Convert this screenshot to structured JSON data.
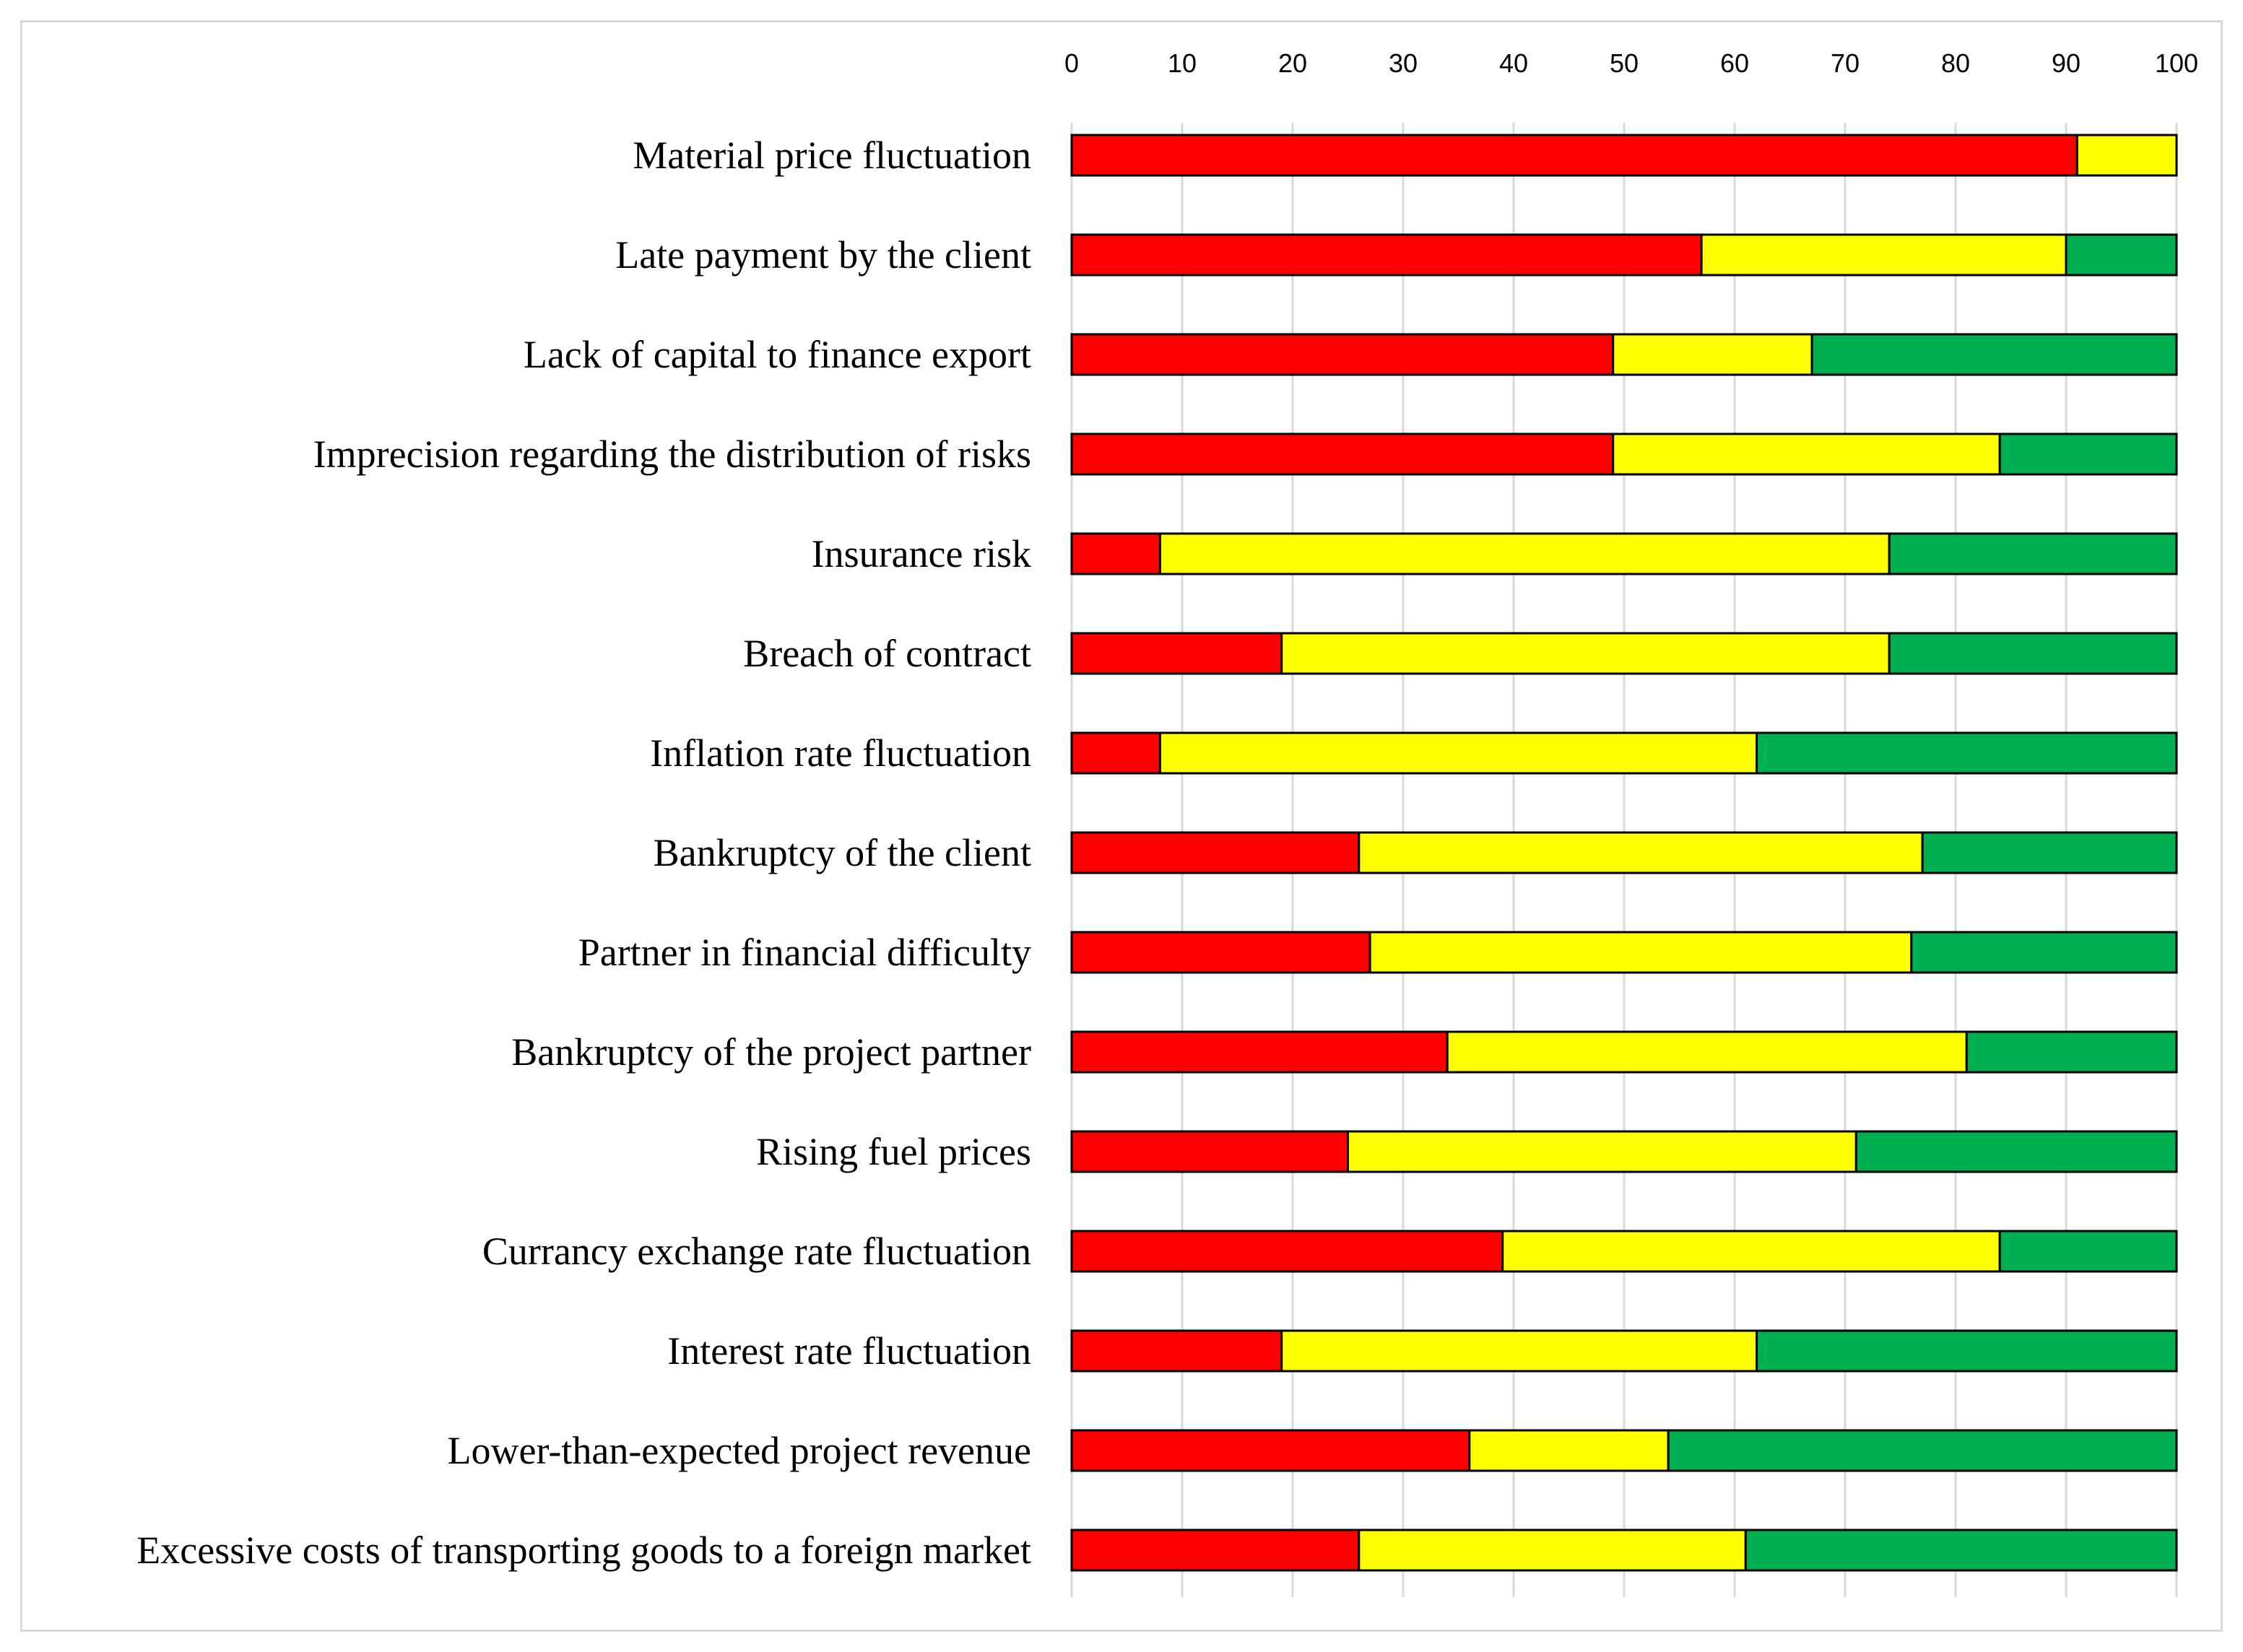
{
  "chart_data": {
    "type": "bar",
    "orientation": "horizontal",
    "stacked": true,
    "title": "",
    "xlabel": "",
    "ylabel": "",
    "xlim": [
      0,
      100
    ],
    "x_ticks": [
      "0",
      "10",
      "20",
      "30",
      "40",
      "50",
      "60",
      "70",
      "80",
      "90",
      "100"
    ],
    "x_tick_values": [
      0,
      10,
      20,
      30,
      40,
      50,
      60,
      70,
      80,
      90,
      100
    ],
    "axis_position": "top",
    "grid": true,
    "legend": "none",
    "categories": [
      "Material price fluctuation",
      "Late payment by the client",
      "Lack of capital to finance export",
      "Imprecision regarding the distribution of risks",
      "Insurance risk",
      "Breach of contract",
      "Inflation rate fluctuation",
      "Bankruptcy of the client",
      "Partner in financial difficulty",
      "Bankruptcy of the project partner",
      "Rising fuel prices",
      "Currancy exchange rate fluctuation",
      "Interest rate fluctuation",
      "Lower-than-expected project revenue",
      "Excessive costs of transporting goods to a foreign market"
    ],
    "series": [
      {
        "name": "red",
        "color": "#ff0000",
        "values": [
          91,
          57,
          49,
          49,
          8,
          19,
          8,
          26,
          27,
          34,
          25,
          39,
          19,
          36,
          26
        ]
      },
      {
        "name": "yellow",
        "color": "#ffff00",
        "values": [
          9,
          33,
          18,
          35,
          66,
          55,
          54,
          51,
          49,
          47,
          46,
          45,
          43,
          18,
          35
        ]
      },
      {
        "name": "green",
        "color": "#00b050",
        "values": [
          0,
          10,
          33,
          16,
          26,
          26,
          38,
          23,
          24,
          19,
          29,
          16,
          38,
          46,
          39
        ]
      }
    ]
  }
}
